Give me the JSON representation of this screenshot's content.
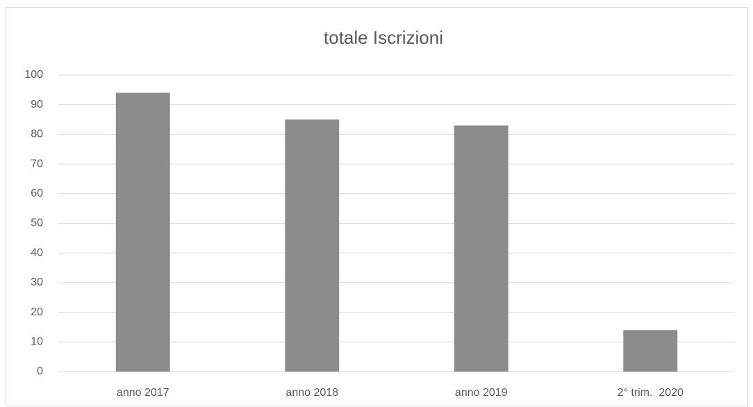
{
  "chart_data": {
    "type": "bar",
    "title": "totale Iscrizioni",
    "categories": [
      "anno 2017",
      "anno 2018",
      "anno 2019",
      "2° trim.  2020"
    ],
    "values": [
      94,
      85,
      83,
      14
    ],
    "color": "#8c8c8c",
    "ylim": [
      0,
      100
    ],
    "yticks": [
      0,
      10,
      20,
      30,
      40,
      50,
      60,
      70,
      80,
      90,
      100
    ],
    "grid": true
  }
}
